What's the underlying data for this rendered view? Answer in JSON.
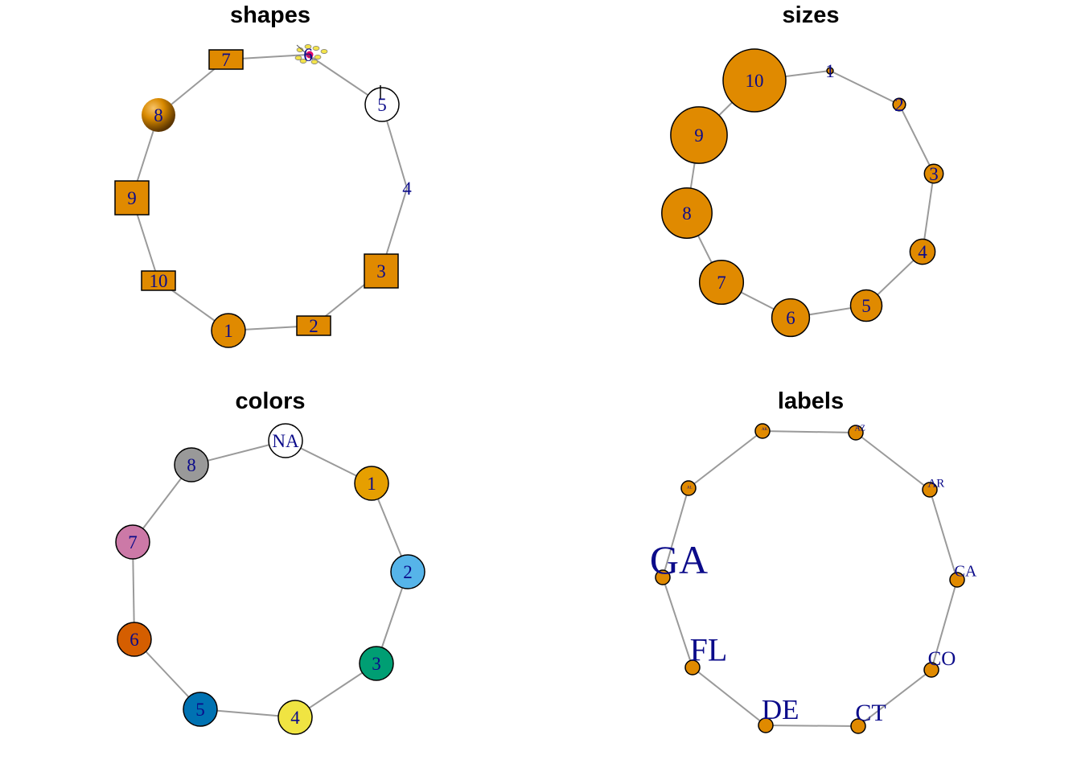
{
  "panels": [
    {
      "id": "shapes",
      "title": "shapes",
      "nodes": [
        {
          "label": "1",
          "shape": "circle"
        },
        {
          "label": "2",
          "shape": "rectangle"
        },
        {
          "label": "3",
          "shape": "square"
        },
        {
          "label": "4",
          "shape": "none"
        },
        {
          "label": "5",
          "shape": "circle-white"
        },
        {
          "label": "6",
          "shape": "raster"
        },
        {
          "label": "7",
          "shape": "rectangle"
        },
        {
          "label": "8",
          "shape": "sphere"
        },
        {
          "label": "9",
          "shape": "square"
        },
        {
          "label": "10",
          "shape": "rectangle"
        }
      ]
    },
    {
      "id": "sizes",
      "title": "sizes",
      "nodes": [
        {
          "label": "1",
          "size": 1
        },
        {
          "label": "2",
          "size": 2
        },
        {
          "label": "3",
          "size": 3
        },
        {
          "label": "4",
          "size": 4
        },
        {
          "label": "5",
          "size": 5
        },
        {
          "label": "6",
          "size": 6
        },
        {
          "label": "7",
          "size": 7
        },
        {
          "label": "8",
          "size": 8
        },
        {
          "label": "9",
          "size": 9
        },
        {
          "label": "10",
          "size": 10
        }
      ]
    },
    {
      "id": "colors",
      "title": "colors",
      "nodes": [
        {
          "label": "1",
          "color": "#E69F00"
        },
        {
          "label": "2",
          "color": "#56B4E9"
        },
        {
          "label": "3",
          "color": "#009E73"
        },
        {
          "label": "4",
          "color": "#F0E442"
        },
        {
          "label": "5",
          "color": "#0072B2"
        },
        {
          "label": "6",
          "color": "#D55E00"
        },
        {
          "label": "7",
          "color": "#CC79A7"
        },
        {
          "label": "8",
          "color": "#999999"
        },
        {
          "label": "NA",
          "color": "#FFFFFF"
        }
      ]
    },
    {
      "id": "labels",
      "title": "labels",
      "nodes": [
        {
          "label": "AK",
          "label_size": 1
        },
        {
          "label": "AZ",
          "label_size": 2
        },
        {
          "label": "AR",
          "label_size": 3
        },
        {
          "label": "CA",
          "label_size": 4
        },
        {
          "label": "CO",
          "label_size": 5
        },
        {
          "label": "CT",
          "label_size": 6
        },
        {
          "label": "DE",
          "label_size": 7
        },
        {
          "label": "FL",
          "label_size": 8
        },
        {
          "label": "GA",
          "label_size": 10
        },
        {
          "label": "AL",
          "label_size": 0.5
        }
      ]
    }
  ],
  "style": {
    "node_fill": "#E08A00",
    "edge_color": "#9A9A9A",
    "label_color": "#0B0B8A",
    "title_color": "#000000"
  }
}
